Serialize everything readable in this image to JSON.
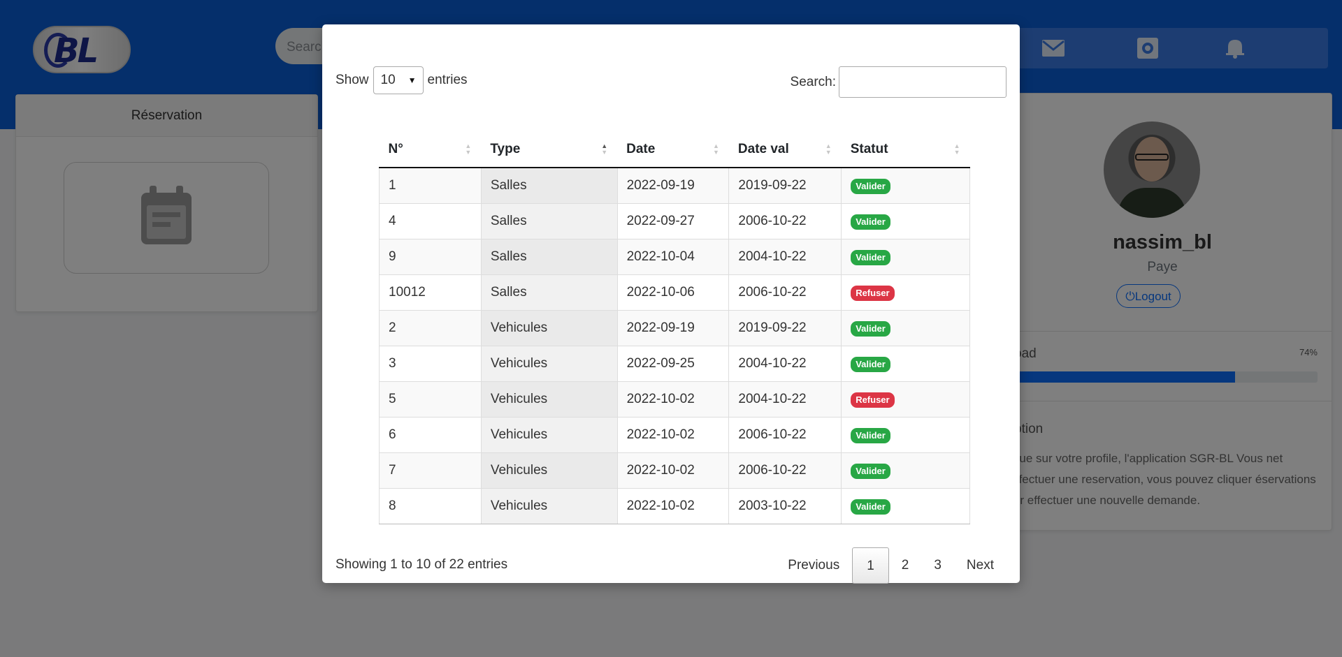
{
  "background": {
    "search_placeholder": "Search",
    "icons": [
      "envelope-icon",
      "gear-icon",
      "bell-icon"
    ],
    "side_card": {
      "title": "Réservation",
      "icon": "calendar-icon"
    },
    "profile": {
      "username": "nassim_bl",
      "role": "Paye",
      "logout_label": "Logout",
      "workload_label": "rkload",
      "workload_percent_label": "74%",
      "workload_value": 0.74,
      "description_title": "cription",
      "description_text": "venue sur votre profile, l'application SGR-BL Vous net d'effectuer une reservation, vous pouvez cliquer éservations pour effectuer une nouvelle demande."
    }
  },
  "modal": {
    "length": {
      "show_label": "Show",
      "selected": "10",
      "entries_label": "entries"
    },
    "search_label": "Search:",
    "table": {
      "columns": [
        "N°",
        "Type",
        "Date",
        "Date val",
        "Statut"
      ],
      "rows": [
        {
          "n": "1",
          "type": "Salles",
          "date": "2022-09-19",
          "date_val": "2019-09-22",
          "statut": "Valider"
        },
        {
          "n": "4",
          "type": "Salles",
          "date": "2022-09-27",
          "date_val": "2006-10-22",
          "statut": "Valider"
        },
        {
          "n": "9",
          "type": "Salles",
          "date": "2022-10-04",
          "date_val": "2004-10-22",
          "statut": "Valider"
        },
        {
          "n": "10012",
          "type": "Salles",
          "date": "2022-10-06",
          "date_val": "2006-10-22",
          "statut": "Refuser"
        },
        {
          "n": "2",
          "type": "Vehicules",
          "date": "2022-09-19",
          "date_val": "2019-09-22",
          "statut": "Valider"
        },
        {
          "n": "3",
          "type": "Vehicules",
          "date": "2022-09-25",
          "date_val": "2004-10-22",
          "statut": "Valider"
        },
        {
          "n": "5",
          "type": "Vehicules",
          "date": "2022-10-02",
          "date_val": "2004-10-22",
          "statut": "Refuser"
        },
        {
          "n": "6",
          "type": "Vehicules",
          "date": "2022-10-02",
          "date_val": "2006-10-22",
          "statut": "Valider"
        },
        {
          "n": "7",
          "type": "Vehicules",
          "date": "2022-10-02",
          "date_val": "2006-10-22",
          "statut": "Valider"
        },
        {
          "n": "8",
          "type": "Vehicules",
          "date": "2022-10-02",
          "date_val": "2003-10-22",
          "statut": "Valider"
        }
      ]
    },
    "info": "Showing 1 to 10 of 22 entries",
    "pagination": {
      "previous": "Previous",
      "pages": [
        "1",
        "2",
        "3"
      ],
      "current": "1",
      "next": "Next"
    }
  },
  "colors": {
    "valider": "#28a745",
    "refuser": "#dc3545",
    "brand_blue": "#0b5ed7"
  }
}
